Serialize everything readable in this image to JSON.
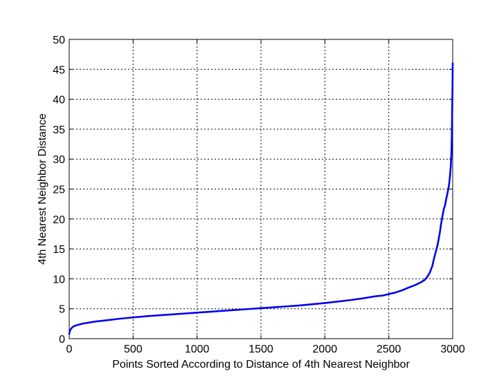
{
  "chart_data": {
    "type": "line",
    "title": "",
    "xlabel": "Points Sorted According to Distance of 4th Nearest Neighbor",
    "ylabel": "4th Nearest Neighbor Distance",
    "xlim": [
      0,
      3000
    ],
    "ylim": [
      0,
      50
    ],
    "xticks": [
      0,
      500,
      1000,
      1500,
      2000,
      2500,
      3000
    ],
    "yticks": [
      0,
      5,
      10,
      15,
      20,
      25,
      30,
      35,
      40,
      45,
      50
    ],
    "xtick_labels": [
      "0",
      "500",
      "1000",
      "1500",
      "2000",
      "2500",
      "3000"
    ],
    "ytick_labels": [
      "0",
      "5",
      "10",
      "15",
      "20",
      "25",
      "30",
      "35",
      "40",
      "45",
      "50"
    ],
    "grid": true,
    "series": [
      {
        "name": "4th nearest neighbor distance",
        "color": "#0000ee",
        "x": [
          0,
          5,
          15,
          30,
          50,
          100,
          200,
          300,
          400,
          500,
          600,
          700,
          800,
          900,
          1000,
          1100,
          1200,
          1300,
          1400,
          1500,
          1600,
          1700,
          1800,
          1900,
          2000,
          2100,
          2200,
          2300,
          2400,
          2450,
          2500,
          2550,
          2600,
          2650,
          2700,
          2750,
          2780,
          2800,
          2820,
          2840,
          2855,
          2870,
          2880,
          2890,
          2900,
          2910,
          2920,
          2930,
          2940,
          2950,
          2960,
          2970,
          2975,
          2980,
          2985,
          2990,
          2993,
          2995,
          2997,
          2999,
          3000
        ],
        "y": [
          0.8,
          1.3,
          1.7,
          2.0,
          2.2,
          2.5,
          2.85,
          3.1,
          3.35,
          3.55,
          3.75,
          3.9,
          4.05,
          4.2,
          4.35,
          4.5,
          4.65,
          4.8,
          4.95,
          5.1,
          5.25,
          5.4,
          5.55,
          5.75,
          5.95,
          6.2,
          6.45,
          6.75,
          7.1,
          7.2,
          7.45,
          7.7,
          8.05,
          8.5,
          8.9,
          9.4,
          9.8,
          10.3,
          11.0,
          12.1,
          13.5,
          14.7,
          15.5,
          16.6,
          17.8,
          19.3,
          20.5,
          21.6,
          22.3,
          23.4,
          24.4,
          25.5,
          26.4,
          27.5,
          28.8,
          31.0,
          33.5,
          36.5,
          39.5,
          43.0,
          46.0
        ]
      }
    ]
  }
}
